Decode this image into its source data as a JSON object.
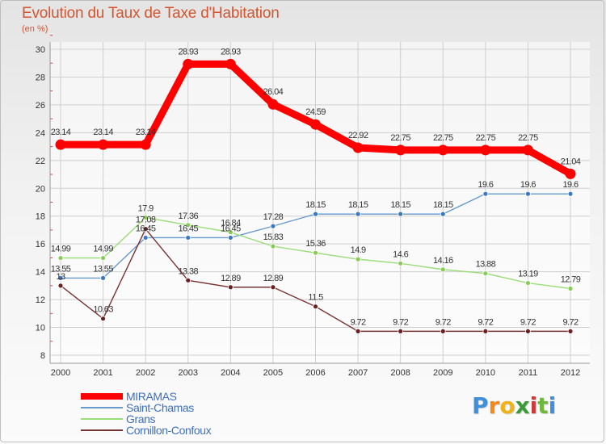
{
  "header": {
    "title": "Evolution du Taux de Taxe d'Habitation",
    "subtitle": "(en %)"
  },
  "chart_data": {
    "type": "line",
    "x": [
      "2000",
      "2001",
      "2002",
      "2003",
      "2004",
      "2005",
      "2006",
      "2007",
      "2008",
      "2009",
      "2010",
      "2011",
      "2012"
    ],
    "ylim": [
      8,
      30
    ],
    "yticks": [
      "8",
      "10",
      "12",
      "14",
      "16",
      "18",
      "20",
      "22",
      "24",
      "26",
      "28",
      "30"
    ],
    "grid": true,
    "legend_position": "bottom-left",
    "series": [
      {
        "name": "MIRAMAS",
        "color": "#ff0000",
        "emphasis": true,
        "values": [
          23.14,
          23.14,
          23.14,
          28.93,
          28.93,
          26.04,
          24.59,
          22.92,
          22.75,
          22.75,
          22.75,
          22.75,
          21.04
        ],
        "labels": [
          "23.14",
          "23.14",
          "23.14",
          "28.93",
          "28.93",
          "26.04",
          "24.59",
          "22.92",
          "22.75",
          "22.75",
          "22.75",
          "22.75",
          "21.04"
        ]
      },
      {
        "name": "Saint-Chamas",
        "color": "#6699cc",
        "marker": "#3a78c2",
        "values": [
          13.55,
          13.55,
          16.45,
          16.45,
          16.45,
          17.28,
          18.15,
          18.15,
          18.15,
          18.15,
          19.6,
          19.6,
          19.6
        ],
        "labels": [
          "13.55",
          "13.55",
          "16.45",
          "16.45",
          "16.45",
          "17.28",
          "18.15",
          "18.15",
          "18.15",
          "18.15",
          "19.6",
          "19.6",
          "19.6"
        ]
      },
      {
        "name": "Grans",
        "color": "#99dd77",
        "marker": "#88cc55",
        "values": [
          14.99,
          14.99,
          17.9,
          17.36,
          16.84,
          15.83,
          15.36,
          14.9,
          14.6,
          14.16,
          13.88,
          13.19,
          12.79
        ],
        "labels": [
          "14.99",
          "14.99",
          "17.9",
          "17.36",
          "16.84",
          "15.83",
          "15.36",
          "14.9",
          "14.6",
          "14.16",
          "13.88",
          "13.19",
          "12.79"
        ]
      },
      {
        "name": "Cornillon-Confoux",
        "color": "#7a3333",
        "marker": "#6a2020",
        "values": [
          13,
          10.63,
          17.08,
          13.38,
          12.89,
          12.89,
          11.5,
          9.72,
          9.72,
          9.72,
          9.72,
          9.72,
          9.72
        ],
        "labels": [
          "13",
          "10.63",
          "17.08",
          "13.38",
          "12.89",
          "12.89",
          "11.5",
          "9.72",
          "9.72",
          "9.72",
          "9.72",
          "9.72",
          "9.72"
        ]
      }
    ]
  },
  "logo": {
    "letters": [
      "P",
      "r",
      "o",
      "x",
      "i",
      "t",
      "i"
    ],
    "colors": [
      "#3f8fd9",
      "#f08a1c",
      "#f0b21c",
      "#3b9b3b",
      "#cc3b3b",
      "#6fb83b",
      "#3f8fd9"
    ]
  }
}
